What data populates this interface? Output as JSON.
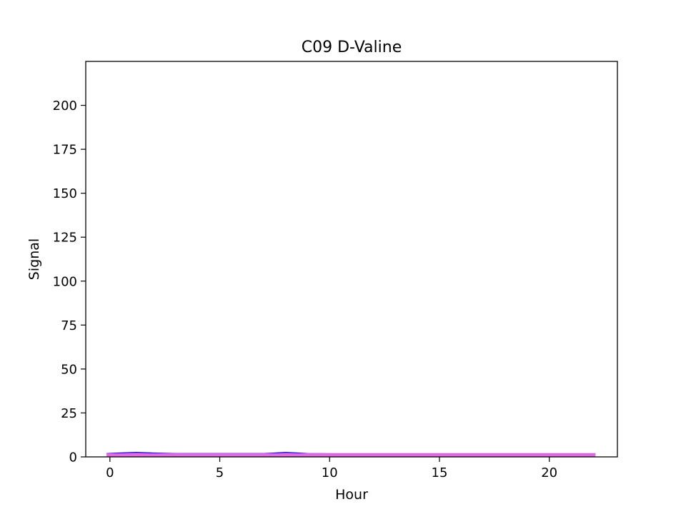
{
  "chart_data": {
    "type": "area",
    "title": "C09 D-Valine",
    "xlabel": "Hour",
    "ylabel": "Signal",
    "xlim": [
      -1.1,
      23.1
    ],
    "ylim": [
      0,
      225
    ],
    "xticks": [
      0,
      5,
      10,
      15,
      20
    ],
    "yticks": [
      0,
      25,
      50,
      75,
      100,
      125,
      150,
      175,
      200
    ],
    "grid": false,
    "legend": "none",
    "series": [
      {
        "color": "#0000ff",
        "fill": "#e066e0",
        "x": [
          -0.15,
          0,
          0.5,
          1.2,
          2,
          3,
          5,
          7,
          7.5,
          8,
          8.5,
          9,
          10,
          12,
          15,
          18,
          20,
          22.1
        ],
        "y": [
          1.9,
          2.0,
          2.3,
          2.6,
          2.2,
          1.9,
          1.9,
          1.9,
          2.2,
          2.6,
          2.3,
          1.9,
          1.8,
          1.8,
          1.8,
          1.8,
          1.8,
          1.8
        ]
      },
      {
        "color": "#e066e0",
        "fill": "#e066e0",
        "x": [
          -0.15,
          22.1
        ],
        "y": [
          1.8,
          1.8
        ]
      }
    ]
  }
}
